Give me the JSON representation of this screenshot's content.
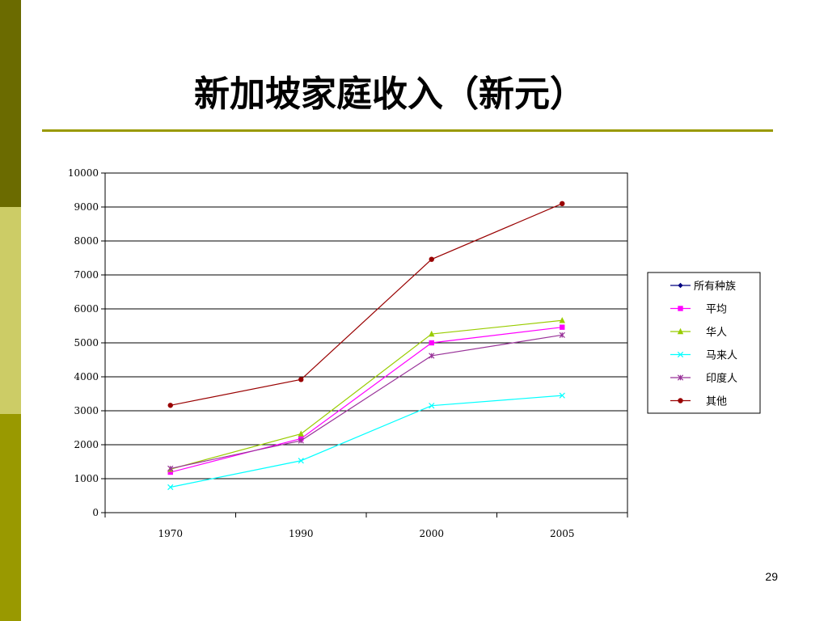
{
  "slide": {
    "title": "新加坡家庭收入（新元）",
    "page_number": "29"
  },
  "colors": {
    "sidebar_top": "#6b6b00",
    "sidebar_mid": "#cccc66",
    "sidebar_bottom": "#999900",
    "title_rule": "#999900"
  },
  "chart_data": {
    "type": "line",
    "categories": [
      "1970",
      "1990",
      "2000",
      "2005"
    ],
    "ylim": [
      0,
      10000
    ],
    "yticks": [
      "0",
      "1000",
      "2000",
      "3000",
      "4000",
      "5000",
      "6000",
      "7000",
      "8000",
      "9000",
      "10000"
    ],
    "grid": true,
    "legend_position": "right",
    "series": [
      {
        "name": "所有种族",
        "color": "#000080",
        "marker": "diamond",
        "values": [
          null,
          null,
          null,
          null
        ]
      },
      {
        "name": "平均",
        "color": "#ff00ff",
        "marker": "square",
        "values": [
          1190,
          2180,
          5000,
          5460
        ]
      },
      {
        "name": "华人",
        "color": "#99cc00",
        "marker": "triangle",
        "values": [
          1280,
          2320,
          5260,
          5660
        ]
      },
      {
        "name": "马来人",
        "color": "#00ffff",
        "marker": "x",
        "values": [
          750,
          1530,
          3150,
          3450
        ]
      },
      {
        "name": "印度人",
        "color": "#993399",
        "marker": "star",
        "values": [
          1300,
          2120,
          4620,
          5230
        ]
      },
      {
        "name": "其他",
        "color": "#990000",
        "marker": "circle",
        "values": [
          3160,
          3920,
          7460,
          9100
        ]
      }
    ]
  }
}
